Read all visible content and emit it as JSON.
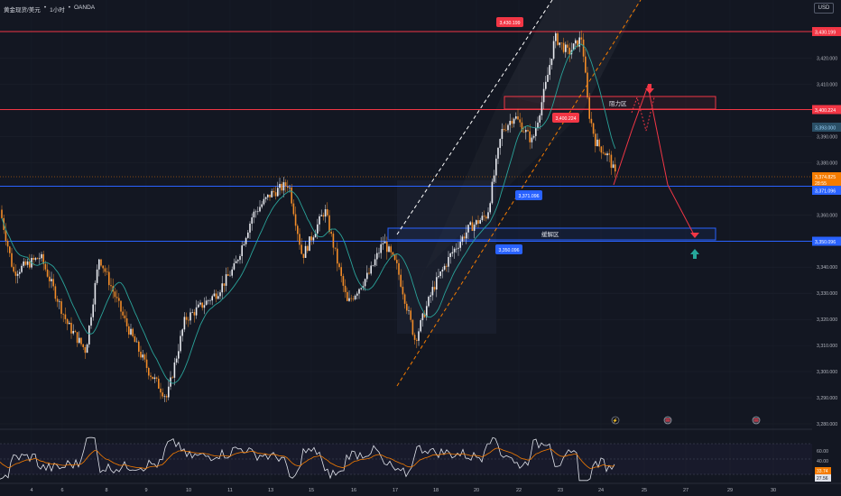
{
  "header": {
    "title": "黄金现货/美元",
    "dot1": "•",
    "timeframe": "1小时",
    "dot2": "•",
    "source": "OANDA"
  },
  "currency": "USD",
  "colors": {
    "background": "#131722",
    "grid": "#1e222d",
    "candle_up": "#e8eaf0",
    "candle_down": "#f28c28",
    "resistance": "#f23645",
    "support": "#2962ff",
    "ma_line": "#2aa39a",
    "channel_dashed": "#ffffff",
    "channel_orange": "#f57c00",
    "arrow_red": "#f23645",
    "arrow_teal": "#26a69a",
    "rsi_white": "#e0e3eb",
    "rsi_orange": "#f57c00",
    "current_price": "#f57c00"
  },
  "price_axis": {
    "labels": [
      "3,430.199",
      "3,420.000",
      "3,410.000",
      "3,400.224",
      "3,390.000",
      "3,380.000",
      "3,371.096",
      "3,360.000",
      "3,350.096",
      "3,340.000",
      "3,330.000",
      "3,320.000",
      "3,310.000",
      "3,300.000",
      "3,290.000",
      "3,280.000"
    ],
    "ticks": [
      3420,
      3410,
      3390,
      3380,
      3360,
      3340,
      3330,
      3320,
      3310,
      3300,
      3290,
      3280
    ],
    "tick_labels": [
      "3,420.000",
      "3,410.000",
      "3,390.000",
      "3,380.000",
      "3,360.000",
      "3,340.000",
      "3,330.000",
      "3,320.000",
      "3,310.000",
      "3,300.000",
      "3,290.000",
      "3,280.000"
    ]
  },
  "level_tags": {
    "resistance_top": "3,430.199",
    "resistance_mid": "3,400.224",
    "ma_value": "3,393.000",
    "current_price": "3,374.825",
    "current_countdown": "28:55",
    "support_mid": "3,371.096",
    "support_low": "3,350.096"
  },
  "chart_tags": {
    "tag_top": "3,430.199",
    "tag_mid": "3,400.224",
    "tag_support1": "3,371.096",
    "tag_support2": "3,350.096"
  },
  "zones": {
    "resistance_zone": "阻力区",
    "buffer_zone": "缓解区"
  },
  "time_axis": [
    "4",
    "6",
    "8",
    "9",
    "10",
    "11",
    "13",
    "15",
    "16",
    "17",
    "18",
    "20",
    "22",
    "23",
    "24",
    "25",
    "27",
    "29",
    "30"
  ],
  "rsi": {
    "labels": [
      "60.00",
      "40.00"
    ],
    "value1": "33.74",
    "value2": "27.56"
  },
  "event_icons": [
    "flash-icon",
    "flag-icon",
    "flag-icon"
  ]
}
